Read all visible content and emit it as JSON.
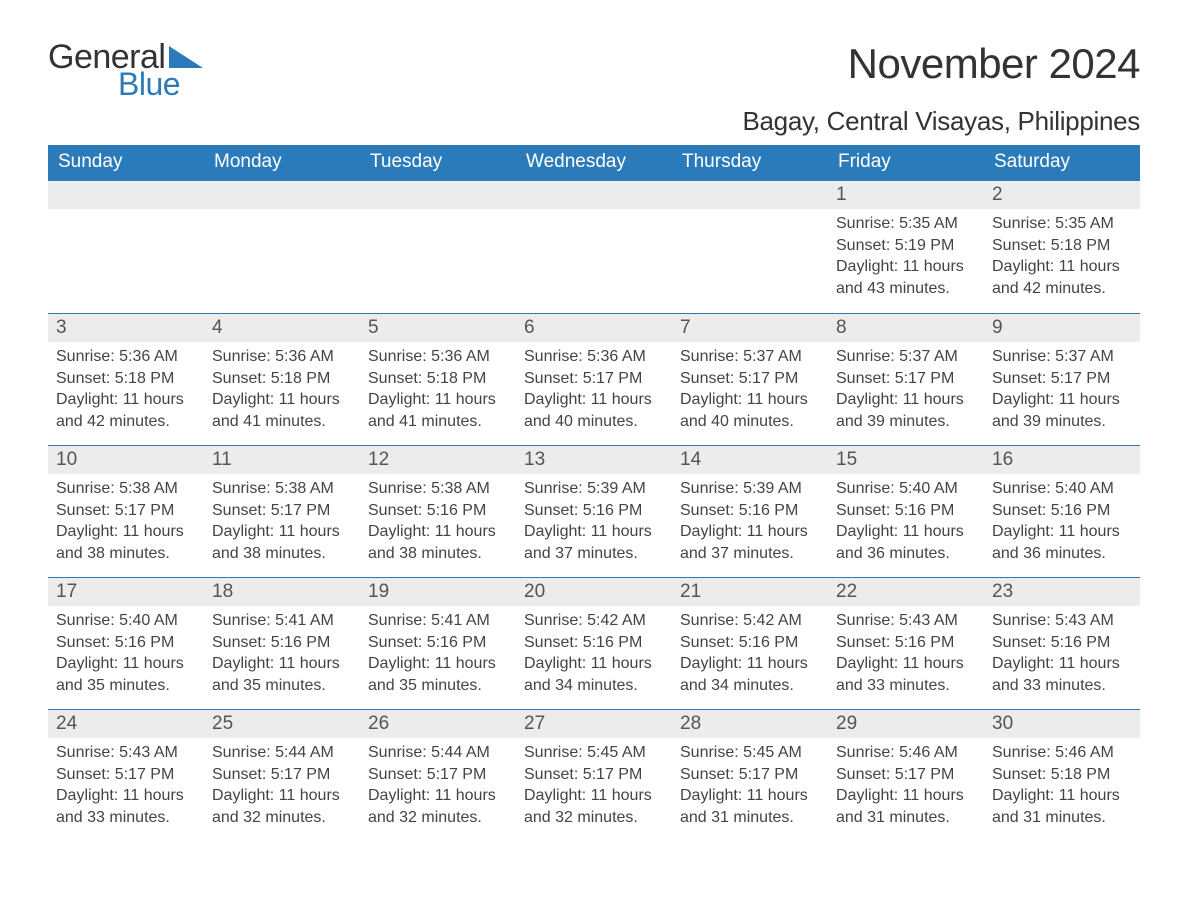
{
  "logo": {
    "text_general": "General",
    "text_blue": "Blue",
    "triangle_color": "#2b7bba"
  },
  "header": {
    "month_title": "November 2024",
    "location": "Bagay, Central Visayas, Philippines"
  },
  "colors": {
    "header_bg": "#2b7bba",
    "header_text": "#ffffff",
    "daynum_bg": "#ececec",
    "text": "#333333",
    "row_border": "#2b7bba"
  },
  "weekdays": [
    "Sunday",
    "Monday",
    "Tuesday",
    "Wednesday",
    "Thursday",
    "Friday",
    "Saturday"
  ],
  "weeks": [
    [
      {
        "day": "",
        "sunrise": "",
        "sunset": "",
        "daylight": ""
      },
      {
        "day": "",
        "sunrise": "",
        "sunset": "",
        "daylight": ""
      },
      {
        "day": "",
        "sunrise": "",
        "sunset": "",
        "daylight": ""
      },
      {
        "day": "",
        "sunrise": "",
        "sunset": "",
        "daylight": ""
      },
      {
        "day": "",
        "sunrise": "",
        "sunset": "",
        "daylight": ""
      },
      {
        "day": "1",
        "sunrise": "Sunrise: 5:35 AM",
        "sunset": "Sunset: 5:19 PM",
        "daylight": "Daylight: 11 hours and 43 minutes."
      },
      {
        "day": "2",
        "sunrise": "Sunrise: 5:35 AM",
        "sunset": "Sunset: 5:18 PM",
        "daylight": "Daylight: 11 hours and 42 minutes."
      }
    ],
    [
      {
        "day": "3",
        "sunrise": "Sunrise: 5:36 AM",
        "sunset": "Sunset: 5:18 PM",
        "daylight": "Daylight: 11 hours and 42 minutes."
      },
      {
        "day": "4",
        "sunrise": "Sunrise: 5:36 AM",
        "sunset": "Sunset: 5:18 PM",
        "daylight": "Daylight: 11 hours and 41 minutes."
      },
      {
        "day": "5",
        "sunrise": "Sunrise: 5:36 AM",
        "sunset": "Sunset: 5:18 PM",
        "daylight": "Daylight: 11 hours and 41 minutes."
      },
      {
        "day": "6",
        "sunrise": "Sunrise: 5:36 AM",
        "sunset": "Sunset: 5:17 PM",
        "daylight": "Daylight: 11 hours and 40 minutes."
      },
      {
        "day": "7",
        "sunrise": "Sunrise: 5:37 AM",
        "sunset": "Sunset: 5:17 PM",
        "daylight": "Daylight: 11 hours and 40 minutes."
      },
      {
        "day": "8",
        "sunrise": "Sunrise: 5:37 AM",
        "sunset": "Sunset: 5:17 PM",
        "daylight": "Daylight: 11 hours and 39 minutes."
      },
      {
        "day": "9",
        "sunrise": "Sunrise: 5:37 AM",
        "sunset": "Sunset: 5:17 PM",
        "daylight": "Daylight: 11 hours and 39 minutes."
      }
    ],
    [
      {
        "day": "10",
        "sunrise": "Sunrise: 5:38 AM",
        "sunset": "Sunset: 5:17 PM",
        "daylight": "Daylight: 11 hours and 38 minutes."
      },
      {
        "day": "11",
        "sunrise": "Sunrise: 5:38 AM",
        "sunset": "Sunset: 5:17 PM",
        "daylight": "Daylight: 11 hours and 38 minutes."
      },
      {
        "day": "12",
        "sunrise": "Sunrise: 5:38 AM",
        "sunset": "Sunset: 5:16 PM",
        "daylight": "Daylight: 11 hours and 38 minutes."
      },
      {
        "day": "13",
        "sunrise": "Sunrise: 5:39 AM",
        "sunset": "Sunset: 5:16 PM",
        "daylight": "Daylight: 11 hours and 37 minutes."
      },
      {
        "day": "14",
        "sunrise": "Sunrise: 5:39 AM",
        "sunset": "Sunset: 5:16 PM",
        "daylight": "Daylight: 11 hours and 37 minutes."
      },
      {
        "day": "15",
        "sunrise": "Sunrise: 5:40 AM",
        "sunset": "Sunset: 5:16 PM",
        "daylight": "Daylight: 11 hours and 36 minutes."
      },
      {
        "day": "16",
        "sunrise": "Sunrise: 5:40 AM",
        "sunset": "Sunset: 5:16 PM",
        "daylight": "Daylight: 11 hours and 36 minutes."
      }
    ],
    [
      {
        "day": "17",
        "sunrise": "Sunrise: 5:40 AM",
        "sunset": "Sunset: 5:16 PM",
        "daylight": "Daylight: 11 hours and 35 minutes."
      },
      {
        "day": "18",
        "sunrise": "Sunrise: 5:41 AM",
        "sunset": "Sunset: 5:16 PM",
        "daylight": "Daylight: 11 hours and 35 minutes."
      },
      {
        "day": "19",
        "sunrise": "Sunrise: 5:41 AM",
        "sunset": "Sunset: 5:16 PM",
        "daylight": "Daylight: 11 hours and 35 minutes."
      },
      {
        "day": "20",
        "sunrise": "Sunrise: 5:42 AM",
        "sunset": "Sunset: 5:16 PM",
        "daylight": "Daylight: 11 hours and 34 minutes."
      },
      {
        "day": "21",
        "sunrise": "Sunrise: 5:42 AM",
        "sunset": "Sunset: 5:16 PM",
        "daylight": "Daylight: 11 hours and 34 minutes."
      },
      {
        "day": "22",
        "sunrise": "Sunrise: 5:43 AM",
        "sunset": "Sunset: 5:16 PM",
        "daylight": "Daylight: 11 hours and 33 minutes."
      },
      {
        "day": "23",
        "sunrise": "Sunrise: 5:43 AM",
        "sunset": "Sunset: 5:16 PM",
        "daylight": "Daylight: 11 hours and 33 minutes."
      }
    ],
    [
      {
        "day": "24",
        "sunrise": "Sunrise: 5:43 AM",
        "sunset": "Sunset: 5:17 PM",
        "daylight": "Daylight: 11 hours and 33 minutes."
      },
      {
        "day": "25",
        "sunrise": "Sunrise: 5:44 AM",
        "sunset": "Sunset: 5:17 PM",
        "daylight": "Daylight: 11 hours and 32 minutes."
      },
      {
        "day": "26",
        "sunrise": "Sunrise: 5:44 AM",
        "sunset": "Sunset: 5:17 PM",
        "daylight": "Daylight: 11 hours and 32 minutes."
      },
      {
        "day": "27",
        "sunrise": "Sunrise: 5:45 AM",
        "sunset": "Sunset: 5:17 PM",
        "daylight": "Daylight: 11 hours and 32 minutes."
      },
      {
        "day": "28",
        "sunrise": "Sunrise: 5:45 AM",
        "sunset": "Sunset: 5:17 PM",
        "daylight": "Daylight: 11 hours and 31 minutes."
      },
      {
        "day": "29",
        "sunrise": "Sunrise: 5:46 AM",
        "sunset": "Sunset: 5:17 PM",
        "daylight": "Daylight: 11 hours and 31 minutes."
      },
      {
        "day": "30",
        "sunrise": "Sunrise: 5:46 AM",
        "sunset": "Sunset: 5:18 PM",
        "daylight": "Daylight: 11 hours and 31 minutes."
      }
    ]
  ]
}
